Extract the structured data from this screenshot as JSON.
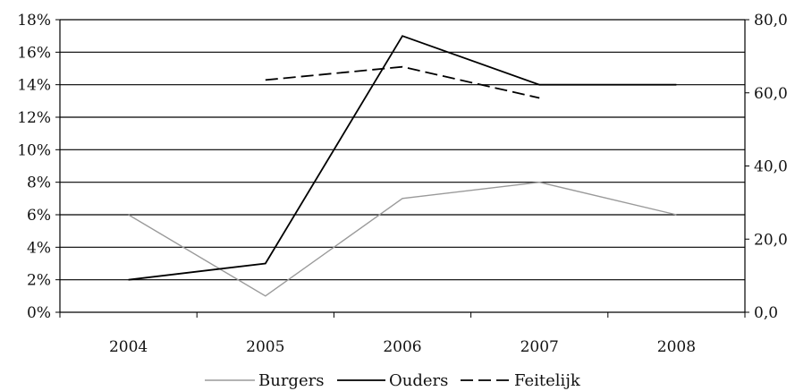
{
  "chart_data": {
    "type": "line",
    "title": "",
    "xlabel": "",
    "ylabel": "",
    "categories": [
      "2004",
      "2005",
      "2006",
      "2007",
      "2008"
    ],
    "y_left": {
      "ylim": [
        0,
        18
      ],
      "ticks": [
        0,
        2,
        4,
        6,
        8,
        10,
        12,
        14,
        16,
        18
      ],
      "tick_labels": [
        "0%",
        "2%",
        "4%",
        "6%",
        "8%",
        "10%",
        "12%",
        "14%",
        "16%",
        "18%"
      ]
    },
    "y_right": {
      "ylim": [
        0,
        80
      ],
      "ticks": [
        0,
        20,
        40,
        60,
        80
      ],
      "tick_labels": [
        "0,0",
        "20,0",
        "40,0",
        "60,0",
        "80,0"
      ]
    },
    "grid": "horizontal",
    "legend_position": "bottom",
    "series": [
      {
        "name": "Burgers",
        "axis": "left",
        "values": [
          6,
          1,
          7,
          8,
          6
        ],
        "color": "#9a9a9a",
        "dash": "solid"
      },
      {
        "name": "Ouders",
        "axis": "left",
        "values": [
          2,
          3,
          17,
          14,
          14
        ],
        "color": "#000000",
        "dash": "solid"
      },
      {
        "name": "Feitelijk",
        "axis": "right",
        "values": [
          null,
          63.5,
          67.1,
          58.6,
          null
        ],
        "color": "#000000",
        "dash": "dashed"
      }
    ]
  }
}
